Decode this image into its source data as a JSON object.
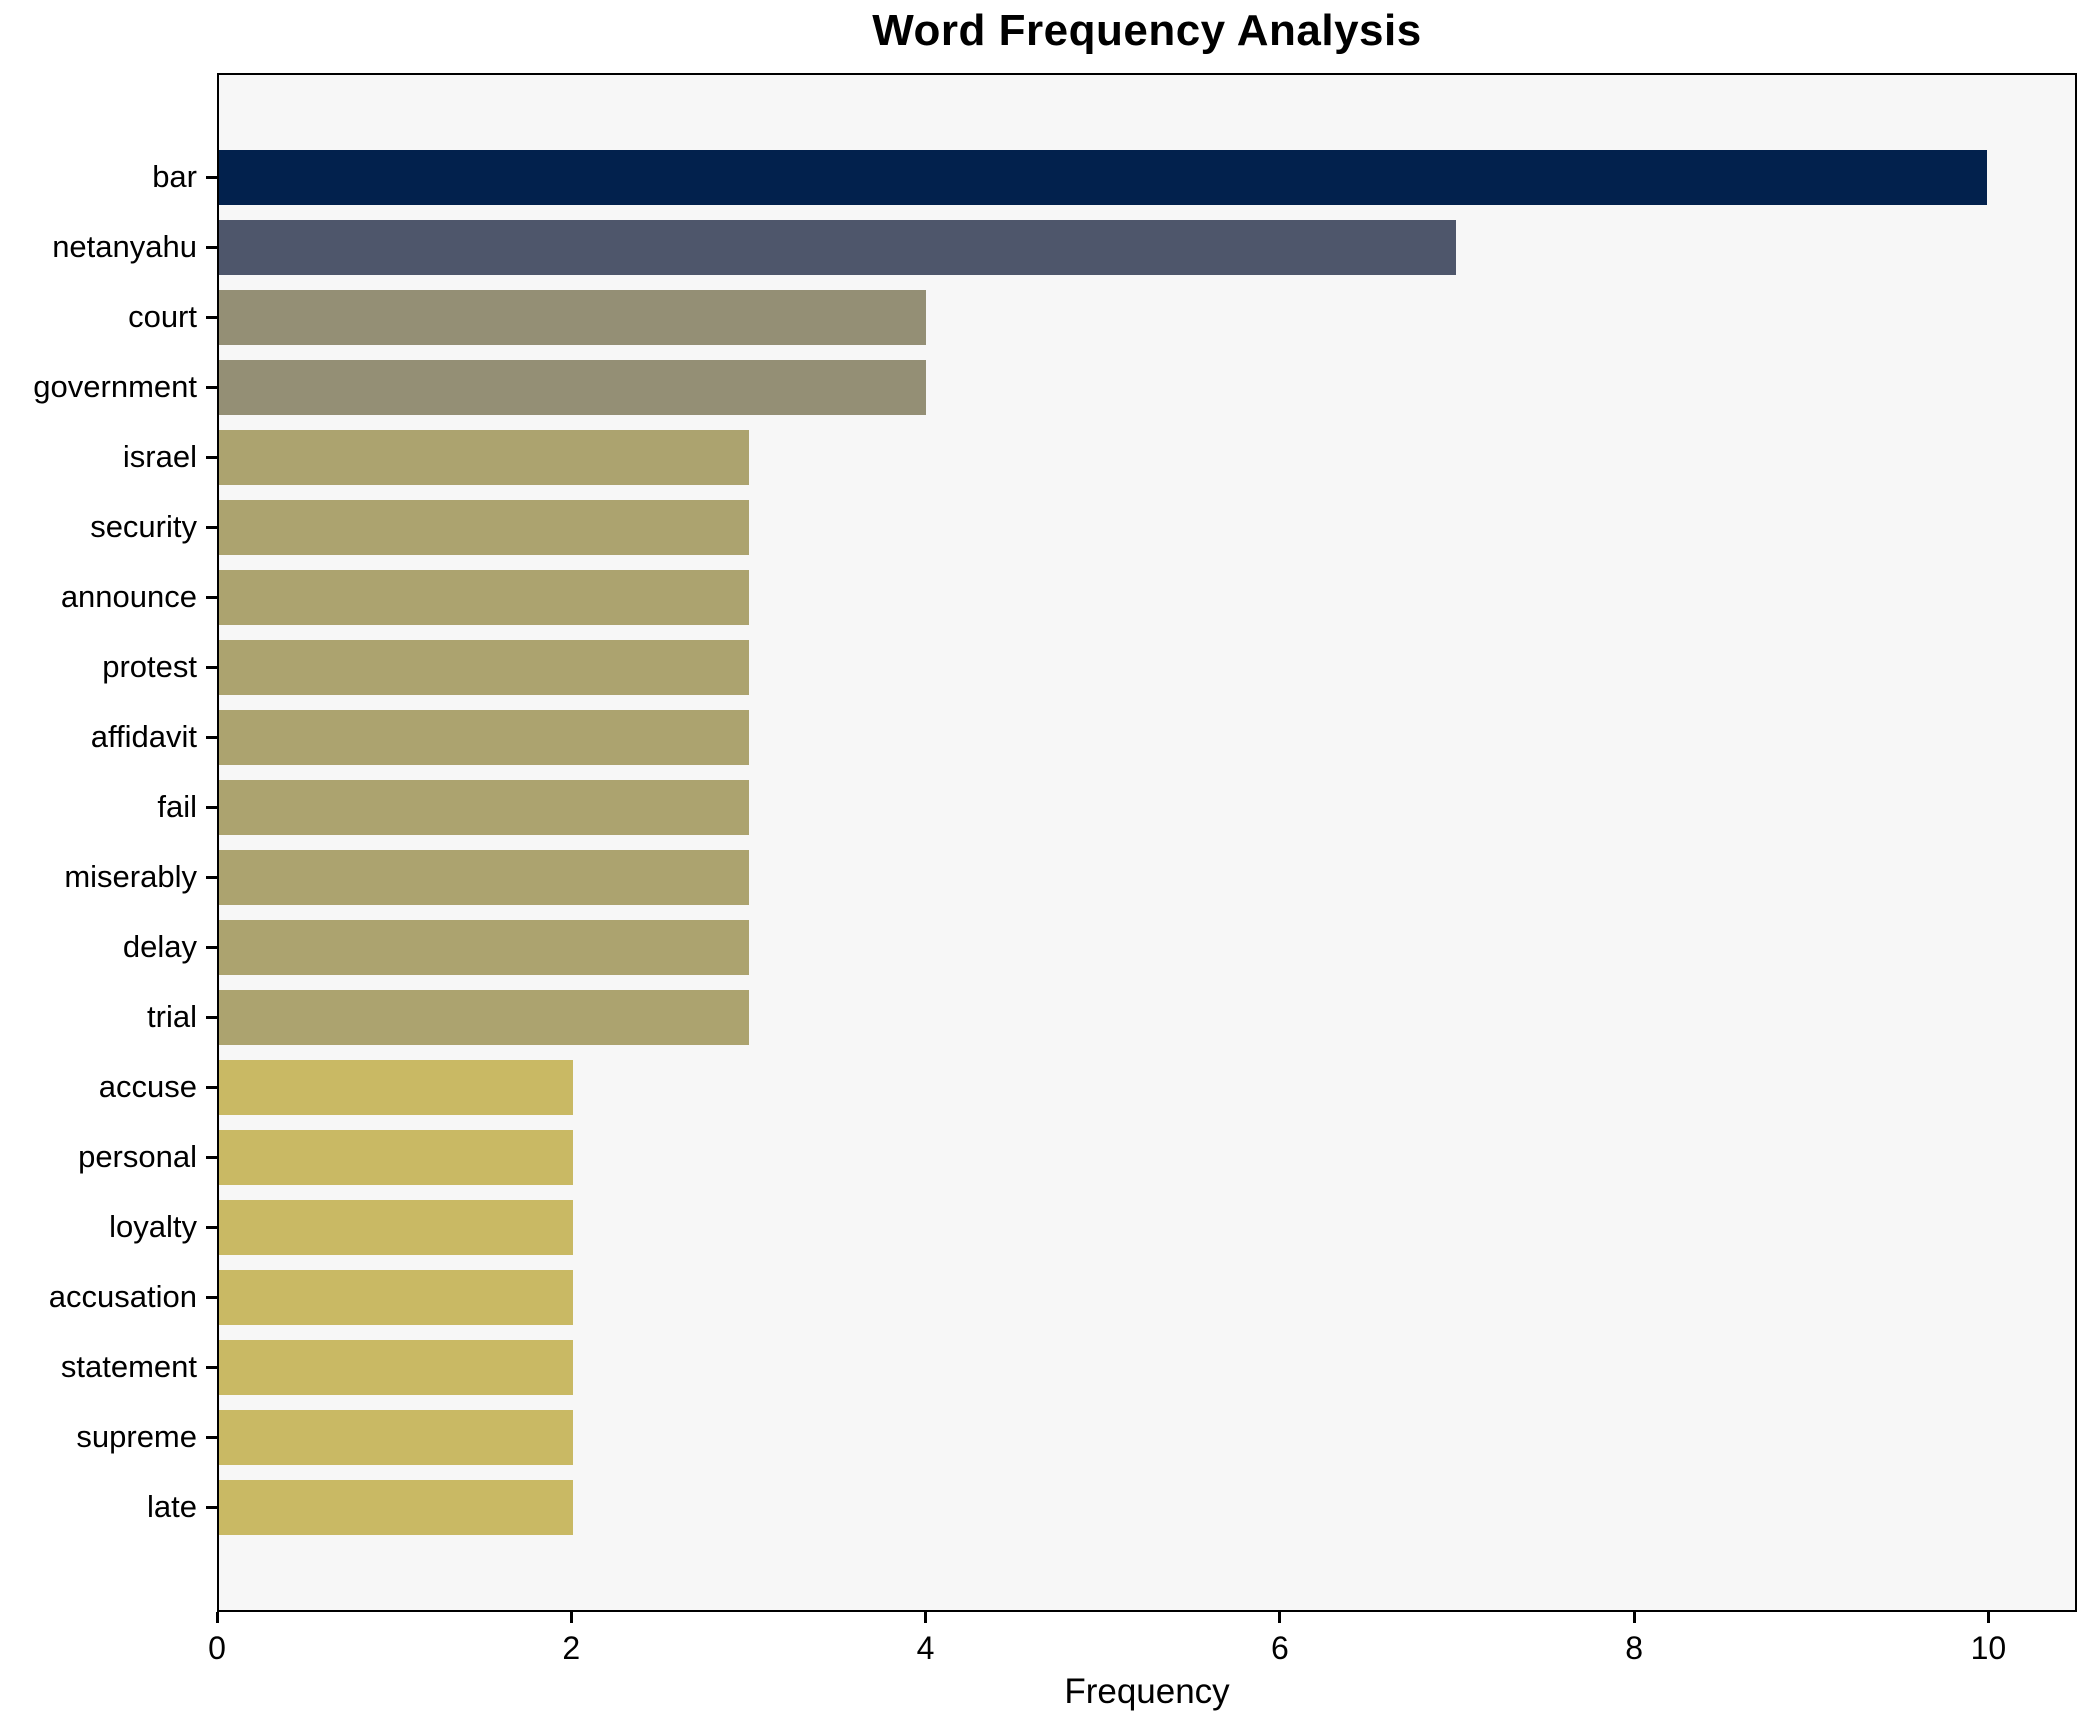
{
  "chart_data": {
    "type": "bar",
    "orientation": "horizontal",
    "title": "Word Frequency Analysis",
    "xlabel": "Frequency",
    "ylabel": "",
    "xlim": [
      0,
      10.5
    ],
    "xticks": [
      0,
      2,
      4,
      6,
      8,
      10
    ],
    "grid": false,
    "legend": "none",
    "categories": [
      "bar",
      "netanyahu",
      "court",
      "government",
      "israel",
      "security",
      "announce",
      "protest",
      "affidavit",
      "fail",
      "miserably",
      "delay",
      "trial",
      "accuse",
      "personal",
      "loyalty",
      "accusation",
      "statement",
      "supreme",
      "late"
    ],
    "values": [
      10,
      7,
      4,
      4,
      3,
      3,
      3,
      3,
      3,
      3,
      3,
      3,
      3,
      2,
      2,
      2,
      2,
      2,
      2,
      2
    ],
    "bar_colors": [
      "#02214d",
      "#4e566b",
      "#948f75",
      "#948f75",
      "#aca36f",
      "#aca36f",
      "#aca36f",
      "#aca36f",
      "#aca36f",
      "#aca36f",
      "#aca36f",
      "#aca36f",
      "#aca36f",
      "#c9b964",
      "#c9b964",
      "#c9b964",
      "#c9b964",
      "#c9b964",
      "#c9b964",
      "#c9b964"
    ]
  },
  "style": {
    "figure_bg": "#ffffff",
    "axes_bg": "#f7f7f7",
    "spine_color": "#000000",
    "tick_color": "#000000",
    "text_color": "#000000"
  }
}
